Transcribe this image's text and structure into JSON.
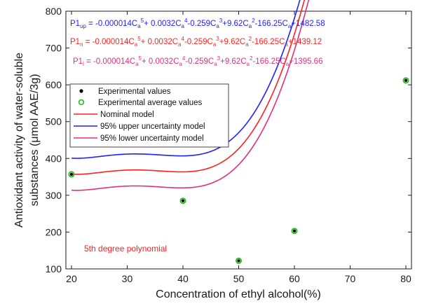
{
  "chart_data": {
    "type": "line",
    "title": "",
    "xlabel": "Concentration of ethyl alcohol(%)",
    "ylabel_lines": [
      "Antioxidant activity of water-soluble",
      "substances (μmol AAE/3g)"
    ],
    "xlim": [
      19,
      81
    ],
    "ylim": [
      100,
      800
    ],
    "xticks": [
      20,
      30,
      40,
      50,
      60,
      70,
      80
    ],
    "yticks": [
      100,
      200,
      300,
      400,
      500,
      600,
      700,
      800
    ],
    "grid": false,
    "legend_position": "top-left",
    "legend": [
      "Experimental values",
      "Experimental average values",
      "Nominal model",
      "95% upper uncertainty model",
      "95% lower uncertainty model"
    ],
    "experimental_points": {
      "x": [
        20,
        40,
        50,
        60,
        80
      ],
      "y": [
        357,
        285,
        122,
        203,
        612
      ]
    },
    "model_coefficients": {
      "c5": -1.4e-05,
      "c4": 0.0032,
      "c3": -0.259,
      "c2": 9.62,
      "c1": -166.25
    },
    "series": [
      {
        "name": "95% upper uncertainty model",
        "intercept": 1482.58,
        "color": "#1f1fff"
      },
      {
        "name": "Nominal model",
        "intercept": 1439.12,
        "color": "#ff2020"
      },
      {
        "name": "95% lower uncertainty model",
        "intercept": 1395.66,
        "color": "#e0307a"
      }
    ],
    "equations": [
      {
        "label": "P1",
        "sub": "up",
        "body": "= -0.000014C",
        "color": "#1f1fff",
        "t1": "+ 0.0032C",
        "t2": "-0.259C",
        "t3": "+9.62C",
        "t4": "-166.25C",
        "end": "+1482.58"
      },
      {
        "label": "P1",
        "sub": "n",
        "body": "= -0.000014C",
        "color": "#ff2020",
        "t1": "+ 0.0032C",
        "t2": "-0.259C",
        "t3": "+9.62C",
        "t4": "-166.25C",
        "end": "+1439.12"
      },
      {
        "label": "P1",
        "sub": "l",
        "body": "= -0.000014C",
        "color": "#e0307a",
        "t1": "+ 0.0032C",
        "t2": "-0.259C",
        "t3": "+9.62C",
        "t4": "-166.25C",
        "end": "+1395.66"
      }
    ],
    "annotation": {
      "text": "5th degree polynomial",
      "color": "#ff2020"
    },
    "colors": {
      "axis": "#1a1a1a",
      "marker_fill": "#000000",
      "marker_ring": "#22c01a"
    }
  }
}
